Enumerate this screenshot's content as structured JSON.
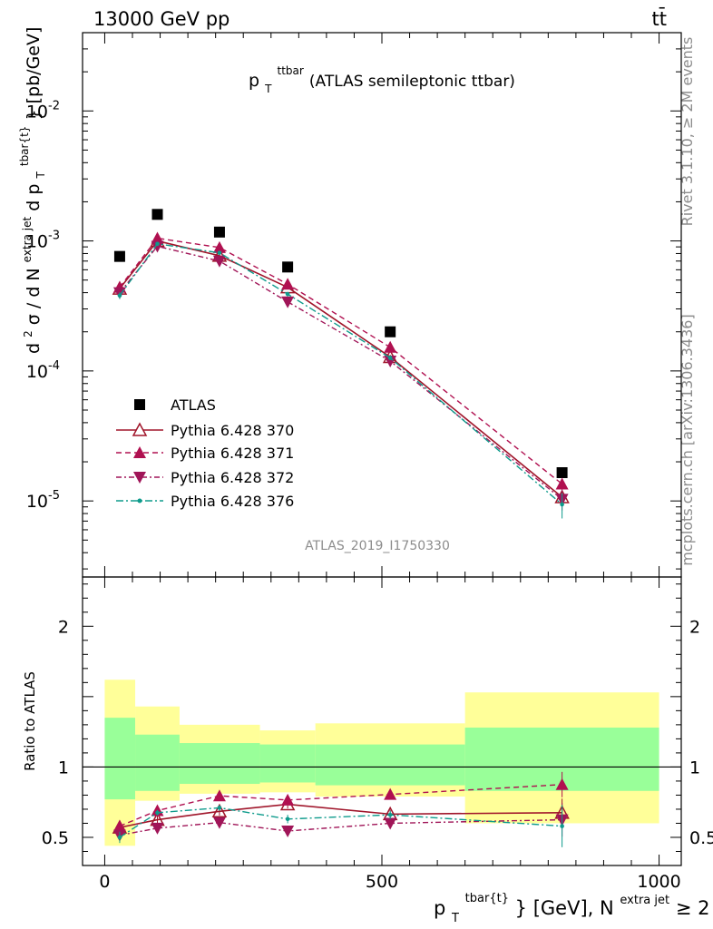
{
  "header": {
    "left": "13000 GeV pp",
    "right": "tt̄"
  },
  "side_labels": {
    "top": "Rivet 3.1.10, ≥ 2M events",
    "bottom": "mcplots.cern.ch [arXiv:1306.3436]"
  },
  "watermark": "ATLAS_2019_I1750330",
  "chart_data": [
    {
      "type": "scatter",
      "panel": "main",
      "title": "p_T^ttbar (ATLAS semileptonic ttbar)",
      "title_main": "p",
      "title_sup": "ttbar",
      "title_sub": "T",
      "title_rest": " (ATLAS semileptonic ttbar)",
      "ylabel": "d²σ / d N^{extra jet} d p_T^{tbar{t}} [pb/GeV]",
      "ylabel_parts": {
        "p1": "d",
        "p1sup": "2",
        "p2": "σ / d N",
        "p2sup": "extra jet",
        "p3": " d p",
        "p3sub": "T",
        "p3sup": "tbar{t}",
        "p4": "} [pb/GeV]"
      },
      "yscale": "log",
      "ylim": [
        2.6e-06,
        0.04
      ],
      "xlim": [
        -40,
        1040
      ],
      "yticks": [
        {
          "v": 1e-05,
          "base": "10",
          "exp": "-5"
        },
        {
          "v": 0.0001,
          "base": "10",
          "exp": "-4"
        },
        {
          "v": 0.001,
          "base": "10",
          "exp": "-3"
        },
        {
          "v": 0.01,
          "base": "10",
          "exp": "-2"
        }
      ],
      "x": [
        27,
        95,
        207,
        330,
        515,
        825
      ],
      "series": [
        {
          "name": "ATLAS",
          "color": "#000000",
          "marker": "square",
          "line": "none",
          "values": [
            0.00076,
            0.0016,
            0.00117,
            0.00063,
            0.0002,
            1.65e-05
          ]
        },
        {
          "name": "Pythia 6.428 370",
          "color": "#a0152a",
          "marker": "triangle-up-open",
          "line": "solid",
          "values": [
            0.00043,
            0.001,
            0.00077,
            0.00044,
            0.000128,
            1.07e-05
          ],
          "err": [
            0.06,
            0.03,
            0.03,
            0.03,
            0.04,
            0.12
          ]
        },
        {
          "name": "Pythia 6.428 371",
          "color": "#b01050",
          "marker": "triangle-up",
          "line": "dashed",
          "values": [
            0.00044,
            0.00105,
            0.00089,
            0.000465,
            0.000152,
            1.35e-05
          ],
          "err": [
            0.06,
            0.03,
            0.03,
            0.03,
            0.04,
            0.1
          ]
        },
        {
          "name": "Pythia 6.428 372",
          "color": "#a01558",
          "marker": "triangle-down",
          "line": "dashdot",
          "values": [
            0.0004,
            0.00091,
            0.0007,
            0.00034,
            0.000119,
            1.03e-05
          ],
          "err": [
            0.06,
            0.03,
            0.03,
            0.03,
            0.04,
            0.18
          ]
        },
        {
          "name": "Pythia 6.428 376",
          "color": "#0e9b8c",
          "marker": "dot",
          "line": "dashdot2",
          "values": [
            0.00038,
            0.00095,
            0.00081,
            0.00039,
            0.000126,
            9.4e-06
          ],
          "err": [
            0.06,
            0.03,
            0.03,
            0.04,
            0.04,
            0.22
          ]
        }
      ]
    },
    {
      "type": "scatter",
      "panel": "ratio",
      "ylabel": "Ratio to ATLAS",
      "xlabel": "p_T^{tbar{t}} [GeV], N^{extra jet} ≥ 2",
      "xlabel_parts": {
        "a": "p",
        "asub": "T",
        "asup": "tbar{t}",
        "b": "} [GeV], N",
        "bsup": "extra jet",
        "c": " ≥ 2"
      },
      "ylim": [
        0.3,
        2.35
      ],
      "xlim": [
        -40,
        1040
      ],
      "yticks": [
        {
          "v": 0.5,
          "label": "0.5"
        },
        {
          "v": 1,
          "label": "1"
        },
        {
          "v": 2,
          "label": "2"
        }
      ],
      "xticks": [
        {
          "v": 0,
          "label": "0"
        },
        {
          "v": 500,
          "label": "500"
        },
        {
          "v": 1000,
          "label": "1000"
        }
      ],
      "bins": [
        [
          0,
          55
        ],
        [
          55,
          135
        ],
        [
          135,
          280
        ],
        [
          280,
          380
        ],
        [
          380,
          650
        ],
        [
          650,
          1000
        ]
      ],
      "band_inner": [
        [
          0.77,
          1.35
        ],
        [
          0.83,
          1.23
        ],
        [
          0.88,
          1.17
        ],
        [
          0.89,
          1.16
        ],
        [
          0.87,
          1.16
        ],
        [
          0.83,
          1.28
        ]
      ],
      "band_outer": [
        [
          0.44,
          1.62
        ],
        [
          0.76,
          1.43
        ],
        [
          0.81,
          1.3
        ],
        [
          0.82,
          1.26
        ],
        [
          0.79,
          1.31
        ],
        [
          0.6,
          1.53
        ]
      ],
      "x": [
        27,
        95,
        207,
        330,
        515,
        825
      ],
      "series": [
        {
          "name": "Pythia 6.428 370",
          "color": "#a0152a",
          "values": [
            0.57,
            0.625,
            0.685,
            0.735,
            0.665,
            0.675
          ],
          "err": [
            0.04,
            0.03,
            0.03,
            0.03,
            0.03,
            0.1
          ]
        },
        {
          "name": "Pythia 6.428 371",
          "color": "#b01050",
          "values": [
            0.58,
            0.69,
            0.795,
            0.765,
            0.805,
            0.875
          ],
          "err": [
            0.04,
            0.02,
            0.02,
            0.03,
            0.03,
            0.09
          ]
        },
        {
          "name": "Pythia 6.428 372",
          "color": "#a01558",
          "values": [
            0.515,
            0.565,
            0.605,
            0.545,
            0.6,
            0.625
          ],
          "err": [
            0.04,
            0.02,
            0.02,
            0.03,
            0.03,
            0.12
          ]
        },
        {
          "name": "Pythia 6.428 376",
          "color": "#0e9b8c",
          "values": [
            0.5,
            0.675,
            0.71,
            0.63,
            0.66,
            0.58
          ],
          "err": [
            0.04,
            0.02,
            0.02,
            0.03,
            0.03,
            0.15
          ]
        }
      ]
    }
  ]
}
